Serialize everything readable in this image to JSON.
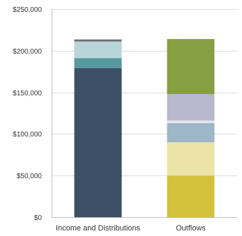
{
  "chart_data": {
    "type": "bar",
    "stacked": true,
    "title": "",
    "xlabel": "",
    "ylabel": "",
    "ylim": [
      0,
      250000
    ],
    "yticks": [
      0,
      50000,
      100000,
      150000,
      200000,
      250000
    ],
    "ytick_labels": [
      "$0",
      "$50,000",
      "$100,000",
      "$150,000",
      "$200,000",
      "$250,000"
    ],
    "grid": true,
    "legend": "none",
    "categories": [
      "Income and Distributions",
      "Outflows"
    ],
    "stacks": [
      {
        "category": "Income and Distributions",
        "segments": [
          {
            "value": 179000,
            "color": "#3d5068"
          },
          {
            "value": 12000,
            "color": "#56999f"
          },
          {
            "value": 20000,
            "color": "#b8d5d8"
          },
          {
            "value": 2500,
            "color": "#6c6f73"
          }
        ]
      },
      {
        "category": "Outflows",
        "segments": [
          {
            "value": 50000,
            "color": "#d3c03b"
          },
          {
            "value": 40000,
            "color": "#ece3a8"
          },
          {
            "value": 23000,
            "color": "#9db6c8"
          },
          {
            "value": 3000,
            "color": "#e4e4e8"
          },
          {
            "value": 32000,
            "color": "#b7b7ce"
          },
          {
            "value": 66000,
            "color": "#869f42"
          }
        ]
      }
    ]
  }
}
